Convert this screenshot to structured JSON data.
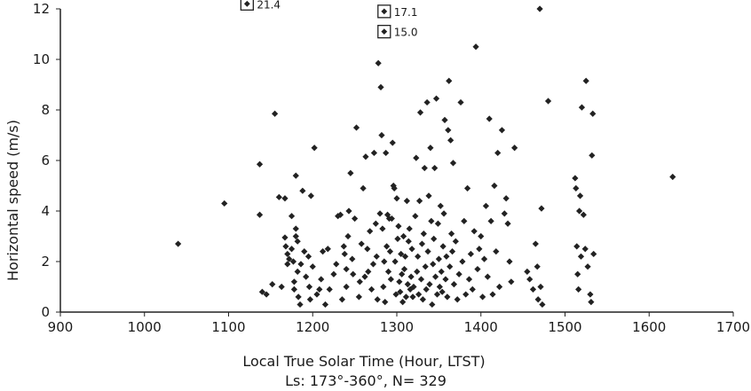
{
  "chart_data": {
    "type": "scatter",
    "xlabel": "Local True Solar Time (Hour, LTST)",
    "ylabel": "Horizontal speed (m/s)",
    "caption": "Ls: 173°-360°, N= 329",
    "xlim": [
      900,
      1700
    ],
    "ylim": [
      0,
      12
    ],
    "xticks": [
      "900",
      "1000",
      "1100",
      "1200",
      "1300",
      "1400",
      "1500",
      "1600",
      "1700"
    ],
    "yticks": [
      "0",
      "2",
      "4",
      "6",
      "8",
      "10",
      "12"
    ],
    "grid": false,
    "marker_color": "#222222",
    "outliers": [
      {
        "x": 1122,
        "y": 12.2,
        "label": "21.4"
      },
      {
        "x": 1285,
        "y": 11.9,
        "label": "17.1"
      },
      {
        "x": 1285,
        "y": 11.1,
        "label": "15.0"
      }
    ],
    "points": [
      [
        1040,
        2.7
      ],
      [
        1095,
        4.3
      ],
      [
        1137,
        5.85
      ],
      [
        1137,
        3.85
      ],
      [
        1140,
        0.8
      ],
      [
        1145,
        0.7
      ],
      [
        1152,
        1.1
      ],
      [
        1155,
        7.85
      ],
      [
        1160,
        4.55
      ],
      [
        1163,
        1.0
      ],
      [
        1167,
        4.5
      ],
      [
        1167,
        2.95
      ],
      [
        1168,
        2.6
      ],
      [
        1170,
        2.3
      ],
      [
        1170,
        1.9
      ],
      [
        1172,
        2.1
      ],
      [
        1175,
        3.8
      ],
      [
        1175,
        2.5
      ],
      [
        1177,
        2.0
      ],
      [
        1178,
        1.2
      ],
      [
        1178,
        0.9
      ],
      [
        1180,
        5.4
      ],
      [
        1180,
        3.3
      ],
      [
        1180,
        3.0
      ],
      [
        1182,
        2.8
      ],
      [
        1182,
        1.6
      ],
      [
        1183,
        0.6
      ],
      [
        1185,
        0.3
      ],
      [
        1186,
        1.9
      ],
      [
        1188,
        4.8
      ],
      [
        1190,
        2.4
      ],
      [
        1192,
        1.4
      ],
      [
        1195,
        2.2
      ],
      [
        1196,
        1.0
      ],
      [
        1197,
        0.5
      ],
      [
        1198,
        4.6
      ],
      [
        1200,
        1.8
      ],
      [
        1202,
        6.5
      ],
      [
        1205,
        0.7
      ],
      [
        1208,
        0.9
      ],
      [
        1210,
        1.3
      ],
      [
        1212,
        2.4
      ],
      [
        1215,
        0.3
      ],
      [
        1218,
        2.5
      ],
      [
        1220,
        0.9
      ],
      [
        1225,
        1.5
      ],
      [
        1228,
        1.9
      ],
      [
        1230,
        3.8
      ],
      [
        1233,
        3.85
      ],
      [
        1235,
        0.5
      ],
      [
        1237,
        2.6
      ],
      [
        1238,
        2.3
      ],
      [
        1240,
        1.7
      ],
      [
        1240,
        1.0
      ],
      [
        1242,
        3.0
      ],
      [
        1243,
        4.0
      ],
      [
        1245,
        5.5
      ],
      [
        1247,
        2.1
      ],
      [
        1248,
        1.5
      ],
      [
        1250,
        3.7
      ],
      [
        1252,
        7.3
      ],
      [
        1255,
        0.6
      ],
      [
        1256,
        1.2
      ],
      [
        1258,
        2.7
      ],
      [
        1260,
        4.9
      ],
      [
        1262,
        1.4
      ],
      [
        1263,
        6.15
      ],
      [
        1265,
        2.5
      ],
      [
        1266,
        1.6
      ],
      [
        1268,
        3.2
      ],
      [
        1270,
        0.9
      ],
      [
        1272,
        1.9
      ],
      [
        1273,
        6.3
      ],
      [
        1275,
        3.5
      ],
      [
        1276,
        2.2
      ],
      [
        1277,
        0.5
      ],
      [
        1278,
        9.85
      ],
      [
        1280,
        3.9
      ],
      [
        1281,
        8.9
      ],
      [
        1282,
        7.0
      ],
      [
        1283,
        3.3
      ],
      [
        1284,
        1.0
      ],
      [
        1285,
        2.0
      ],
      [
        1286,
        0.4
      ],
      [
        1287,
        6.3
      ],
      [
        1288,
        2.6
      ],
      [
        1289,
        3.85
      ],
      [
        1290,
        1.6
      ],
      [
        1291,
        3.7
      ],
      [
        1292,
        2.4
      ],
      [
        1293,
        1.3
      ],
      [
        1294,
        3.7
      ],
      [
        1295,
        6.7
      ],
      [
        1296,
        5.0
      ],
      [
        1297,
        4.9
      ],
      [
        1298,
        2.0
      ],
      [
        1299,
        0.7
      ],
      [
        1300,
        4.5
      ],
      [
        1301,
        2.9
      ],
      [
        1302,
        3.4
      ],
      [
        1303,
        1.2
      ],
      [
        1304,
        0.8
      ],
      [
        1305,
        2.3
      ],
      [
        1306,
        1.5
      ],
      [
        1307,
        0.4
      ],
      [
        1308,
        3.0
      ],
      [
        1309,
        1.7
      ],
      [
        1310,
        2.2
      ],
      [
        1311,
        0.6
      ],
      [
        1312,
        4.4
      ],
      [
        1313,
        1.1
      ],
      [
        1314,
        2.8
      ],
      [
        1315,
        3.3
      ],
      [
        1316,
        0.9
      ],
      [
        1317,
        1.4
      ],
      [
        1318,
        2.5
      ],
      [
        1319,
        0.6
      ],
      [
        1320,
        1.0
      ],
      [
        1322,
        3.8
      ],
      [
        1323,
        6.1
      ],
      [
        1324,
        1.6
      ],
      [
        1325,
        2.2
      ],
      [
        1326,
        0.7
      ],
      [
        1327,
        4.4
      ],
      [
        1328,
        7.9
      ],
      [
        1329,
        1.3
      ],
      [
        1330,
        2.7
      ],
      [
        1331,
        0.5
      ],
      [
        1332,
        3.1
      ],
      [
        1333,
        5.7
      ],
      [
        1334,
        1.8
      ],
      [
        1335,
        0.9
      ],
      [
        1336,
        8.3
      ],
      [
        1337,
        2.4
      ],
      [
        1338,
        4.6
      ],
      [
        1339,
        1.1
      ],
      [
        1340,
        6.5
      ],
      [
        1341,
        3.6
      ],
      [
        1342,
        0.3
      ],
      [
        1343,
        1.9
      ],
      [
        1344,
        2.9
      ],
      [
        1345,
        5.7
      ],
      [
        1346,
        1.4
      ],
      [
        1347,
        8.45
      ],
      [
        1348,
        0.7
      ],
      [
        1349,
        3.5
      ],
      [
        1350,
        2.1
      ],
      [
        1351,
        1.0
      ],
      [
        1352,
        4.2
      ],
      [
        1353,
        1.6
      ],
      [
        1354,
        0.8
      ],
      [
        1355,
        2.6
      ],
      [
        1356,
        3.9
      ],
      [
        1357,
        7.6
      ],
      [
        1358,
        1.3
      ],
      [
        1359,
        2.2
      ],
      [
        1360,
        0.6
      ],
      [
        1361,
        7.2
      ],
      [
        1362,
        9.15
      ],
      [
        1363,
        1.8
      ],
      [
        1364,
        6.8
      ],
      [
        1365,
        3.1
      ],
      [
        1366,
        2.4
      ],
      [
        1367,
        5.9
      ],
      [
        1368,
        1.1
      ],
      [
        1370,
        2.8
      ],
      [
        1372,
        0.5
      ],
      [
        1374,
        1.5
      ],
      [
        1376,
        8.3
      ],
      [
        1378,
        2.0
      ],
      [
        1380,
        3.6
      ],
      [
        1382,
        0.7
      ],
      [
        1384,
        4.9
      ],
      [
        1386,
        1.3
      ],
      [
        1388,
        2.3
      ],
      [
        1390,
        0.9
      ],
      [
        1392,
        3.2
      ],
      [
        1394,
        10.5
      ],
      [
        1396,
        1.7
      ],
      [
        1398,
        2.5
      ],
      [
        1400,
        3.0
      ],
      [
        1402,
        0.6
      ],
      [
        1404,
        2.1
      ],
      [
        1406,
        4.2
      ],
      [
        1408,
        1.4
      ],
      [
        1410,
        7.65
      ],
      [
        1412,
        3.6
      ],
      [
        1414,
        0.7
      ],
      [
        1416,
        5.0
      ],
      [
        1418,
        2.4
      ],
      [
        1420,
        6.3
      ],
      [
        1422,
        1.0
      ],
      [
        1425,
        7.2
      ],
      [
        1428,
        3.9
      ],
      [
        1430,
        4.5
      ],
      [
        1432,
        3.5
      ],
      [
        1434,
        2.0
      ],
      [
        1436,
        1.2
      ],
      [
        1440,
        6.5
      ],
      [
        1455,
        1.6
      ],
      [
        1458,
        1.3
      ],
      [
        1462,
        0.9
      ],
      [
        1465,
        2.7
      ],
      [
        1467,
        1.8
      ],
      [
        1468,
        0.5
      ],
      [
        1470,
        12.0
      ],
      [
        1471,
        1.0
      ],
      [
        1472,
        4.1
      ],
      [
        1473,
        0.3
      ],
      [
        1480,
        8.35
      ],
      [
        1512,
        5.3
      ],
      [
        1513,
        4.9
      ],
      [
        1514,
        2.6
      ],
      [
        1515,
        1.5
      ],
      [
        1516,
        0.9
      ],
      [
        1517,
        4.0
      ],
      [
        1518,
        4.6
      ],
      [
        1519,
        2.2
      ],
      [
        1520,
        8.1
      ],
      [
        1522,
        3.85
      ],
      [
        1524,
        2.5
      ],
      [
        1525,
        9.15
      ],
      [
        1527,
        1.8
      ],
      [
        1530,
        0.7
      ],
      [
        1531,
        0.4
      ],
      [
        1532,
        6.2
      ],
      [
        1533,
        7.85
      ],
      [
        1534,
        2.3
      ],
      [
        1628,
        5.35
      ]
    ]
  }
}
